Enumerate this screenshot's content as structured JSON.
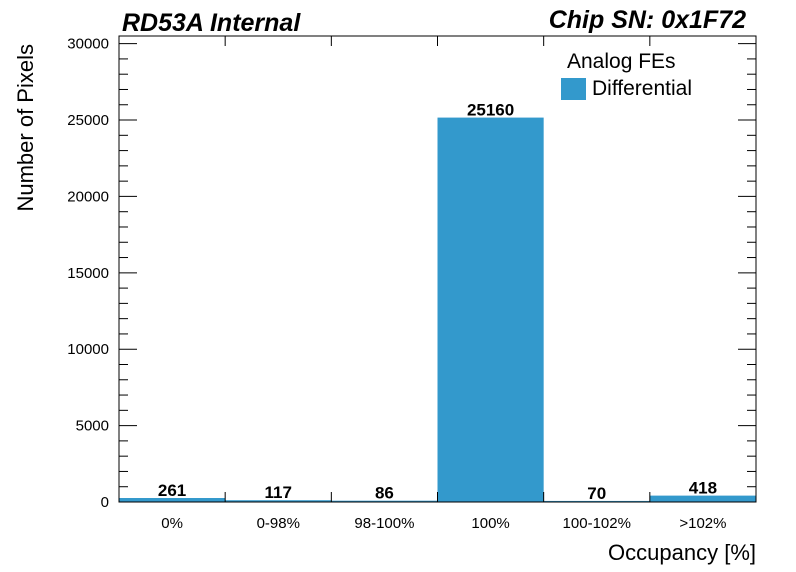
{
  "header": {
    "left": "RD53A Internal",
    "right": "Chip SN: 0x1F72"
  },
  "chart_data": {
    "type": "bar",
    "categories": [
      "0%",
      "0-98%",
      "98-100%",
      "100%",
      "100-102%",
      ">102%"
    ],
    "series": [
      {
        "name": "Differential",
        "values": [
          261,
          117,
          86,
          25160,
          70,
          418
        ],
        "color": "#3399cc"
      }
    ],
    "data_labels": [
      "261",
      "117",
      "86",
      "25160",
      "70",
      "418"
    ],
    "xlabel": "Occupancy [%]",
    "ylabel": "Number of Pixels",
    "ylim": [
      0,
      30500
    ],
    "yticks": [
      0,
      5000,
      10000,
      15000,
      20000,
      25000,
      30000
    ],
    "ytick_labels": [
      "0",
      "5000",
      "10000",
      "15000",
      "20000",
      "25000",
      "30000"
    ],
    "legend": {
      "title": "Analog FEs",
      "placement": "top-right"
    },
    "grid": false
  }
}
